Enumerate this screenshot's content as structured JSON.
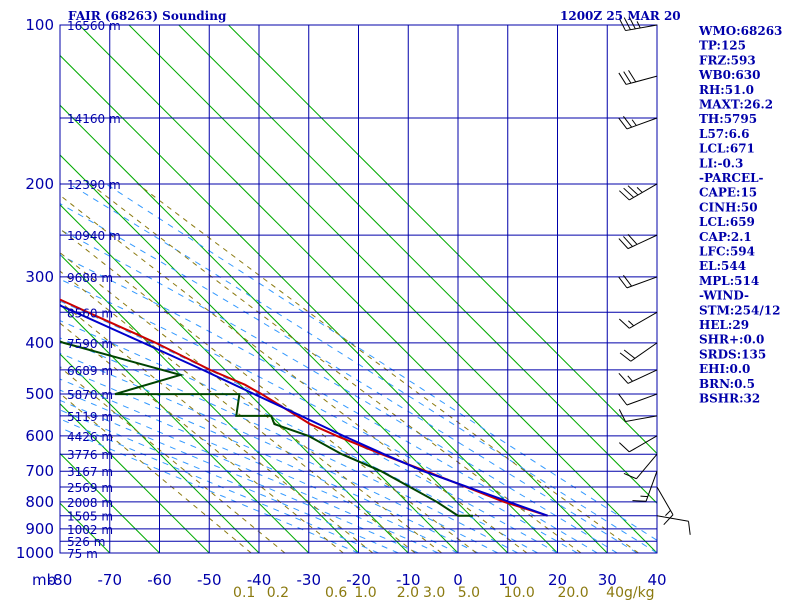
{
  "header": {
    "title": "FAIR (68263) Sounding",
    "time": "1200Z 25 MAR 20"
  },
  "indices": [
    "WMO:68263",
    "TP:125",
    "FRZ:593",
    "WB0:630",
    "RH:51.0",
    "MAXT:26.2",
    "TH:5795",
    "L57:6.6",
    "LCL:671",
    "LI:-0.3",
    "-PARCEL-",
    "CAPE:15",
    "CINH:50",
    "LCL:659",
    "CAP:2.1",
    "LFC:594",
    "EL:544",
    "MPL:514",
    "-WIND-",
    "STM:254/12",
    "HEL:29",
    "SHR+:0.0",
    "SRDS:135",
    "EHI:0.0",
    "BRN:0.5",
    "BSHR:32"
  ],
  "colors": {
    "axis_text": "#0000aa",
    "grid": "#0000aa",
    "isotherm": "#00aa00",
    "temperature": "#cc0000",
    "dewpoint": "#004400",
    "parcel": "#0000cc",
    "mixing": "#8b7a10",
    "moist_adiabat": "#3399ff",
    "wind_barb": "#000000"
  },
  "chart_data": {
    "type": "line",
    "subtype": "skew-t log-p sounding",
    "y_scale": "log",
    "x_axis_unit_label": "mb",
    "pressure_levels": [
      100,
      200,
      300,
      400,
      500,
      600,
      700,
      800,
      900,
      1000
    ],
    "pressure_labels": [
      "100",
      "200",
      "300",
      "400",
      "500",
      "600",
      "700",
      "800",
      "900",
      "1000"
    ],
    "temperature_ticks": [
      -80,
      -70,
      -60,
      -50,
      -40,
      -30,
      -20,
      -10,
      0,
      10,
      20,
      30,
      40
    ],
    "temperature_labels": [
      "-80",
      "-70",
      "-60",
      "-50",
      "-40",
      "-30",
      "-20",
      "-10",
      "0",
      "10",
      "20",
      "30",
      "40"
    ],
    "mixing_ratio_labels": [
      "0.1",
      "0.2",
      "0.6",
      "1.0",
      "2.0",
      "3.0",
      "5.0",
      "10.0",
      "20.0",
      "40g/kg"
    ],
    "mixing_ratio_values": [
      0.1,
      0.2,
      0.6,
      1.0,
      2.0,
      3.0,
      5.0,
      10.0,
      20.0,
      40.0
    ],
    "height_labels": [
      {
        "p": 100,
        "text": "16560 m"
      },
      {
        "p": 150,
        "text": "14160 m"
      },
      {
        "p": 200,
        "text": "12390 m"
      },
      {
        "p": 250,
        "text": "10940 m"
      },
      {
        "p": 300,
        "text": "9688 m"
      },
      {
        "p": 350,
        "text": "8560 m"
      },
      {
        "p": 400,
        "text": "7590 m"
      },
      {
        "p": 450,
        "text": "6689 m"
      },
      {
        "p": 500,
        "text": "5870 m"
      },
      {
        "p": 550,
        "text": "5119 m"
      },
      {
        "p": 600,
        "text": "4426 m"
      },
      {
        "p": 650,
        "text": "3776 m"
      },
      {
        "p": 700,
        "text": "3167 m"
      },
      {
        "p": 750,
        "text": "2569 m"
      },
      {
        "p": 800,
        "text": "2008 m"
      },
      {
        "p": 850,
        "text": "1505 m"
      },
      {
        "p": 900,
        "text": "1002 m"
      },
      {
        "p": 950,
        "text": "526 m"
      },
      {
        "p": 1000,
        "text": "75 m"
      }
    ],
    "series": [
      {
        "key": "temperature",
        "points": [
          {
            "p": 850,
            "t": 25.5
          },
          {
            "p": 800,
            "t": 19.5
          },
          {
            "p": 700,
            "t": 10.0
          },
          {
            "p": 650,
            "t": 4.5
          },
          {
            "p": 600,
            "t": -0.8
          },
          {
            "p": 570,
            "t": -3.8
          },
          {
            "p": 500,
            "t": -7.5
          },
          {
            "p": 480,
            "t": -9.0
          },
          {
            "p": 450,
            "t": -13.0
          },
          {
            "p": 400,
            "t": -18.5
          },
          {
            "p": 350,
            "t": -26.0
          },
          {
            "p": 300,
            "t": -34.5
          },
          {
            "p": 250,
            "t": -44.5
          },
          {
            "p": 200,
            "t": -54.0
          },
          {
            "p": 150,
            "t": -66.0
          },
          {
            "p": 120,
            "t": -68.5
          },
          {
            "p": 110,
            "t": -73.0
          },
          {
            "p": 100,
            "t": -73.5
          }
        ]
      },
      {
        "key": "dewpoint",
        "points": [
          {
            "p": 850,
            "t": 10.5
          },
          {
            "p": 850,
            "t": 7.5
          },
          {
            "p": 800,
            "t": 6.0
          },
          {
            "p": 700,
            "t": 1.0
          },
          {
            "p": 650,
            "t": -3.5
          },
          {
            "p": 600,
            "t": -6.5
          },
          {
            "p": 570,
            "t": -11.0
          },
          {
            "p": 550,
            "t": -10.0
          },
          {
            "p": 550,
            "t": -17.0
          },
          {
            "p": 500,
            "t": -12.0
          },
          {
            "p": 500,
            "t": -37.0
          },
          {
            "p": 460,
            "t": -20.0
          },
          {
            "p": 400,
            "t": -37.0
          },
          {
            "p": 350,
            "t": -47.0
          },
          {
            "p": 300,
            "t": -56.0
          },
          {
            "p": 250,
            "t": -52.0
          },
          {
            "p": 230,
            "t": -58.0
          },
          {
            "p": 200,
            "t": -68.5
          },
          {
            "p": 150,
            "t": -82.0
          },
          {
            "p": 140,
            "t": -88.0
          }
        ]
      },
      {
        "key": "parcel",
        "points": [
          {
            "p": 850,
            "t": 25.5
          },
          {
            "p": 700,
            "t": 9.5
          },
          {
            "p": 650,
            "t": 5.0
          },
          {
            "p": 600,
            "t": 0.5
          },
          {
            "p": 550,
            "t": -4.0
          },
          {
            "p": 500,
            "t": -9.0
          },
          {
            "p": 450,
            "t": -14.5
          },
          {
            "p": 400,
            "t": -21.0
          },
          {
            "p": 350,
            "t": -28.5
          },
          {
            "p": 300,
            "t": -37.5
          },
          {
            "p": 250,
            "t": -48.0
          },
          {
            "p": 200,
            "t": -60.0
          },
          {
            "p": 150,
            "t": -75.0
          },
          {
            "p": 130,
            "t": -82.0
          }
        ]
      }
    ],
    "wind_barbs": [
      {
        "p": 100,
        "dir": 260,
        "spd": 35
      },
      {
        "p": 125,
        "dir": 255,
        "spd": 30
      },
      {
        "p": 150,
        "dir": 250,
        "spd": 25
      },
      {
        "p": 200,
        "dir": 240,
        "spd": 35
      },
      {
        "p": 250,
        "dir": 245,
        "spd": 30
      },
      {
        "p": 300,
        "dir": 250,
        "spd": 20
      },
      {
        "p": 350,
        "dir": 240,
        "spd": 15
      },
      {
        "p": 400,
        "dir": 235,
        "spd": 20
      },
      {
        "p": 450,
        "dir": 245,
        "spd": 15
      },
      {
        "p": 500,
        "dir": 250,
        "spd": 10
      },
      {
        "p": 550,
        "dir": 260,
        "spd": 10
      },
      {
        "p": 600,
        "dir": 240,
        "spd": 10
      },
      {
        "p": 650,
        "dir": 220,
        "spd": 10
      },
      {
        "p": 700,
        "dir": 200,
        "spd": 15
      },
      {
        "p": 750,
        "dir": 150,
        "spd": 15
      },
      {
        "p": 850,
        "dir": 100,
        "spd": 10
      }
    ]
  }
}
